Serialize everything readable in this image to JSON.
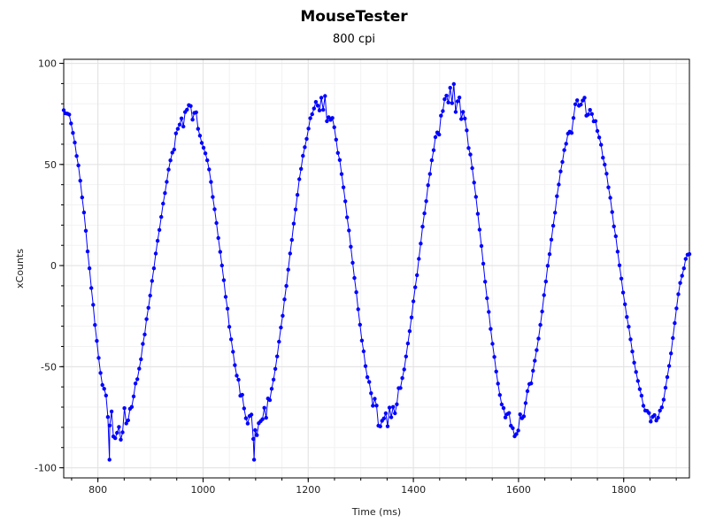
{
  "chart_data": {
    "type": "line",
    "title": "MouseTester",
    "subtitle": "800 cpi",
    "xlabel": "Time (ms)",
    "ylabel": "xCounts",
    "xlim": [
      735,
      1925
    ],
    "ylim": [
      -105,
      102
    ],
    "x_ticks": [
      800,
      1000,
      1200,
      1400,
      1600,
      1800
    ],
    "x_minor_step": 50,
    "y_ticks": [
      100,
      50,
      0,
      -50,
      -100
    ],
    "y_minor_step": 10,
    "grid": true,
    "series": [
      {
        "color": "#0000ff",
        "marker": "circle",
        "peaks": [
          {
            "x": 735,
            "y": 80
          },
          {
            "x": 835,
            "y": -88
          },
          {
            "x": 975,
            "y": 80
          },
          {
            "x": 1100,
            "y": -87
          },
          {
            "x": 1225,
            "y": 86
          },
          {
            "x": 1345,
            "y": -85
          },
          {
            "x": 1475,
            "y": 90
          },
          {
            "x": 1590,
            "y": -85
          },
          {
            "x": 1722,
            "y": 85
          },
          {
            "x": 1860,
            "y": -80
          },
          {
            "x": 1925,
            "y": 5
          }
        ],
        "outliers": [
          {
            "x": 822,
            "y": -96
          },
          {
            "x": 1097,
            "y": -96
          }
        ]
      }
    ]
  }
}
